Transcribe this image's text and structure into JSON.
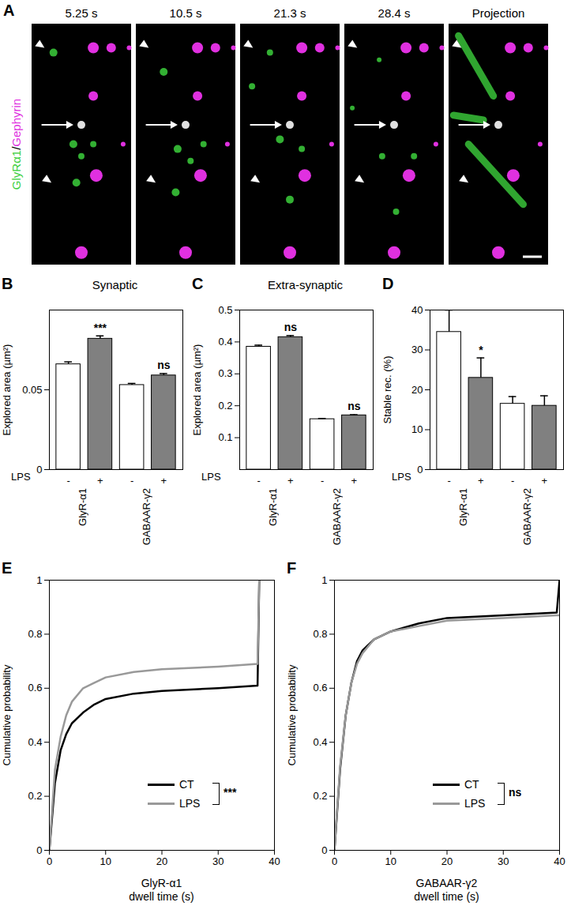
{
  "image_panel": {
    "panel_label": "A",
    "frames": [
      "5.25 s",
      "10.5 s",
      "21.3 s",
      "28.4 s",
      "Projection"
    ],
    "channels": [
      {
        "name": "GlyRα1",
        "color": "#3ccf3c"
      },
      {
        "name": "Gephyrin",
        "color": "#e030e0"
      }
    ],
    "separator": "/"
  },
  "chart_data": [
    {
      "type": "bar",
      "panel_label": "B",
      "title": "Synaptic",
      "y_label": "Explored area (µm²)",
      "x_label": "LPS",
      "categories": [
        "-",
        "+",
        "-",
        "+"
      ],
      "groups": [
        "GlyR-α1",
        "GABAAR-γ2"
      ],
      "values": [
        0.066,
        0.082,
        0.053,
        0.059
      ],
      "errors": [
        0.0015,
        0.0018,
        0.001,
        0.0012
      ],
      "colors": [
        "#ffffff",
        "#808080",
        "#ffffff",
        "#808080"
      ],
      "significance": [
        {
          "category": 1,
          "label": "***"
        },
        {
          "category": 3,
          "label": "ns"
        }
      ],
      "ylim": [
        0,
        0.1
      ],
      "yticks": [
        0,
        0.05
      ]
    },
    {
      "type": "bar",
      "panel_label": "C",
      "title": "Extra-synaptic",
      "y_label": "Explored area (µm²)",
      "x_label": "LPS",
      "categories": [
        "-",
        "+",
        "-",
        "+"
      ],
      "groups": [
        "GlyR-α1",
        "GABAAR-γ2"
      ],
      "values": [
        0.385,
        0.415,
        0.158,
        0.17
      ],
      "errors": [
        0.005,
        0.005,
        0.002,
        0.002
      ],
      "colors": [
        "#ffffff",
        "#808080",
        "#ffffff",
        "#808080"
      ],
      "significance": [
        {
          "category": 1,
          "label": "ns"
        },
        {
          "category": 3,
          "label": "ns"
        }
      ],
      "ylim": [
        0,
        0.5
      ],
      "yticks": [
        0.1,
        0.2,
        0.3,
        0.4,
        0.5
      ]
    },
    {
      "type": "bar",
      "panel_label": "D",
      "y_label": "Stable rec. (%)",
      "x_label": "LPS",
      "categories": [
        "-",
        "+",
        "-",
        "+"
      ],
      "groups": [
        "GlyR-α1",
        "GABAAR-γ2"
      ],
      "values": [
        34.5,
        23,
        16.5,
        16
      ],
      "errors": [
        5.5,
        5,
        1.8,
        2.5
      ],
      "colors": [
        "#ffffff",
        "#808080",
        "#ffffff",
        "#808080"
      ],
      "significance": [
        {
          "category": 1,
          "label": "*"
        }
      ],
      "ylim": [
        0,
        40
      ],
      "yticks": [
        0,
        10,
        20,
        30,
        40
      ]
    },
    {
      "type": "line",
      "panel_label": "E",
      "y_label": "Cumulative probability",
      "x_label": "GlyR-α1\ndwell time (s)",
      "x": [
        0,
        1,
        2,
        3,
        4,
        6,
        8,
        10,
        15,
        20,
        30,
        37,
        37.3
      ],
      "series": [
        {
          "name": "CT",
          "color": "#000000",
          "values": [
            0,
            0.25,
            0.37,
            0.43,
            0.47,
            0.51,
            0.54,
            0.56,
            0.58,
            0.59,
            0.6,
            0.61,
            1
          ]
        },
        {
          "name": "LPS",
          "color": "#999999",
          "values": [
            0,
            0.3,
            0.42,
            0.5,
            0.55,
            0.6,
            0.62,
            0.64,
            0.66,
            0.67,
            0.68,
            0.69,
            1
          ]
        }
      ],
      "significance": "***",
      "legend": "bottom-right",
      "xlim": [
        0,
        40
      ],
      "xticks": [
        0,
        10,
        20,
        30,
        40
      ],
      "ylim": [
        0,
        1
      ],
      "yticks": [
        0,
        0.2,
        0.4,
        0.6,
        0.8,
        1
      ]
    },
    {
      "type": "line",
      "panel_label": "F",
      "y_label": "Cumulative probability",
      "x_label": "GABAAR-γ2\ndwell time (s)",
      "x": [
        0,
        0.5,
        1,
        2,
        3,
        4,
        5,
        7,
        10,
        15,
        20,
        30,
        39.5,
        40
      ],
      "series": [
        {
          "name": "CT",
          "color": "#000000",
          "values": [
            0,
            0.15,
            0.3,
            0.5,
            0.62,
            0.7,
            0.74,
            0.78,
            0.81,
            0.84,
            0.86,
            0.87,
            0.88,
            1
          ]
        },
        {
          "name": "LPS",
          "color": "#999999",
          "values": [
            0,
            0.16,
            0.31,
            0.5,
            0.62,
            0.69,
            0.73,
            0.78,
            0.81,
            0.83,
            0.85,
            0.86,
            0.87,
            0.87
          ]
        }
      ],
      "significance": "ns",
      "legend": "bottom-right",
      "xlim": [
        0,
        40
      ],
      "xticks": [
        0,
        10,
        20,
        30,
        40
      ],
      "ylim": [
        0,
        1
      ],
      "yticks": [
        0,
        0.2,
        0.4,
        0.6,
        0.8,
        1
      ]
    }
  ]
}
